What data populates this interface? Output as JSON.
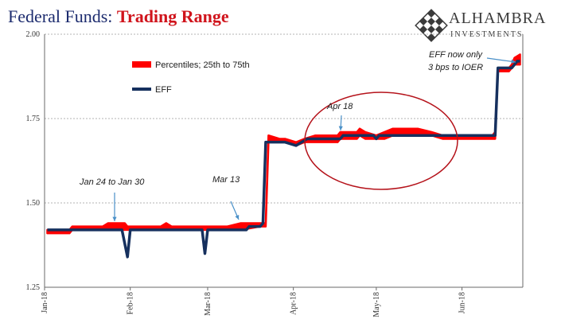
{
  "title": {
    "part1": "Federal Funds: ",
    "part2": "Trading Range"
  },
  "logo": {
    "brand": "ALHAMBRA",
    "sub": "INVESTMENTS"
  },
  "colors": {
    "band": "#ff0000",
    "eff": "#16305e",
    "title_dark": "#1c2b6e",
    "title_red": "#d0141c",
    "ellipse": "#b5131b",
    "arrow": "#4a90c8"
  },
  "chart_data": {
    "type": "line",
    "title": "Federal Funds: Trading Range",
    "xlabel": "",
    "ylabel": "",
    "ylim": [
      1.25,
      2.0
    ],
    "yticks": [
      "1.25",
      "1.50",
      "1.75",
      "2.00"
    ],
    "xticks": [
      "Jan-18",
      "Feb-18",
      "Mar-18",
      "Apr-18",
      "May-18",
      "Jun-18"
    ],
    "grid": "horizontal dashed",
    "legend_position": "top-left",
    "series": [
      {
        "name": "Percentiles; 25th to 75th",
        "kind": "band",
        "points": [
          [
            "2018-01-02",
            1.41,
            1.42
          ],
          [
            "2018-01-10",
            1.41,
            1.42
          ],
          [
            "2018-01-11",
            1.42,
            1.43
          ],
          [
            "2018-01-22",
            1.42,
            1.43
          ],
          [
            "2018-01-24",
            1.42,
            1.44
          ],
          [
            "2018-01-30",
            1.42,
            1.44
          ],
          [
            "2018-01-31",
            1.42,
            1.43
          ],
          [
            "2018-02-01",
            1.42,
            1.43
          ],
          [
            "2018-02-12",
            1.42,
            1.43
          ],
          [
            "2018-02-14",
            1.42,
            1.44
          ],
          [
            "2018-02-16",
            1.42,
            1.43
          ],
          [
            "2018-02-28",
            1.42,
            1.43
          ],
          [
            "2018-03-01",
            1.42,
            1.43
          ],
          [
            "2018-03-08",
            1.42,
            1.43
          ],
          [
            "2018-03-13",
            1.42,
            1.44
          ],
          [
            "2018-03-20",
            1.43,
            1.44
          ],
          [
            "2018-03-21",
            1.43,
            1.44
          ],
          [
            "2018-03-22",
            1.43,
            1.44
          ],
          [
            "2018-03-23",
            1.68,
            1.7
          ],
          [
            "2018-03-27",
            1.68,
            1.69
          ],
          [
            "2018-03-29",
            1.68,
            1.69
          ],
          [
            "2018-04-02",
            1.67,
            1.68
          ],
          [
            "2018-04-05",
            1.68,
            1.69
          ],
          [
            "2018-04-09",
            1.68,
            1.7
          ],
          [
            "2018-04-17",
            1.68,
            1.7
          ],
          [
            "2018-04-18",
            1.69,
            1.71
          ],
          [
            "2018-04-24",
            1.69,
            1.71
          ],
          [
            "2018-04-25",
            1.7,
            1.72
          ],
          [
            "2018-04-27",
            1.69,
            1.71
          ],
          [
            "2018-05-01",
            1.69,
            1.7
          ],
          [
            "2018-05-04",
            1.69,
            1.71
          ],
          [
            "2018-05-07",
            1.7,
            1.72
          ],
          [
            "2018-05-16",
            1.7,
            1.72
          ],
          [
            "2018-05-21",
            1.7,
            1.71
          ],
          [
            "2018-05-25",
            1.69,
            1.7
          ],
          [
            "2018-06-01",
            1.69,
            1.7
          ],
          [
            "2018-06-12",
            1.69,
            1.7
          ],
          [
            "2018-06-13",
            1.69,
            1.71
          ],
          [
            "2018-06-14",
            1.89,
            1.9
          ],
          [
            "2018-06-18",
            1.89,
            1.9
          ],
          [
            "2018-06-19",
            1.9,
            1.91
          ],
          [
            "2018-06-20",
            1.91,
            1.93
          ],
          [
            "2018-06-22",
            1.91,
            1.94
          ]
        ]
      },
      {
        "name": "EFF",
        "kind": "line",
        "points": [
          [
            "2018-01-02",
            1.42
          ],
          [
            "2018-01-29",
            1.42
          ],
          [
            "2018-01-31",
            1.34
          ],
          [
            "2018-02-01",
            1.42
          ],
          [
            "2018-02-27",
            1.42
          ],
          [
            "2018-02-28",
            1.35
          ],
          [
            "2018-03-01",
            1.42
          ],
          [
            "2018-03-15",
            1.42
          ],
          [
            "2018-03-16",
            1.43
          ],
          [
            "2018-03-20",
            1.43
          ],
          [
            "2018-03-21",
            1.44
          ],
          [
            "2018-03-22",
            1.68
          ],
          [
            "2018-03-29",
            1.68
          ],
          [
            "2018-04-02",
            1.67
          ],
          [
            "2018-04-04",
            1.68
          ],
          [
            "2018-04-06",
            1.69
          ],
          [
            "2018-04-17",
            1.69
          ],
          [
            "2018-04-18",
            1.69
          ],
          [
            "2018-04-19",
            1.7
          ],
          [
            "2018-04-30",
            1.7
          ],
          [
            "2018-05-01",
            1.69
          ],
          [
            "2018-05-02",
            1.7
          ],
          [
            "2018-06-12",
            1.7
          ],
          [
            "2018-06-13",
            1.7
          ],
          [
            "2018-06-14",
            1.9
          ],
          [
            "2018-06-18",
            1.9
          ],
          [
            "2018-06-19",
            1.9
          ],
          [
            "2018-06-20",
            1.91
          ],
          [
            "2018-06-21",
            1.92
          ],
          [
            "2018-06-22",
            1.92
          ]
        ]
      }
    ],
    "annotations": [
      {
        "text": "Jan 24 to Jan 30",
        "date": "2018-01-27",
        "value": 1.44
      },
      {
        "text": "Mar 13",
        "date": "2018-03-13",
        "value": 1.44
      },
      {
        "text": "Apr 18",
        "date": "2018-04-18",
        "value": 1.7
      },
      {
        "text": "EFF now only",
        "date": "2018-06-22",
        "value": 1.92
      },
      {
        "text": "3 bps to IOER",
        "date": "2018-06-22",
        "value": 1.92
      }
    ]
  }
}
